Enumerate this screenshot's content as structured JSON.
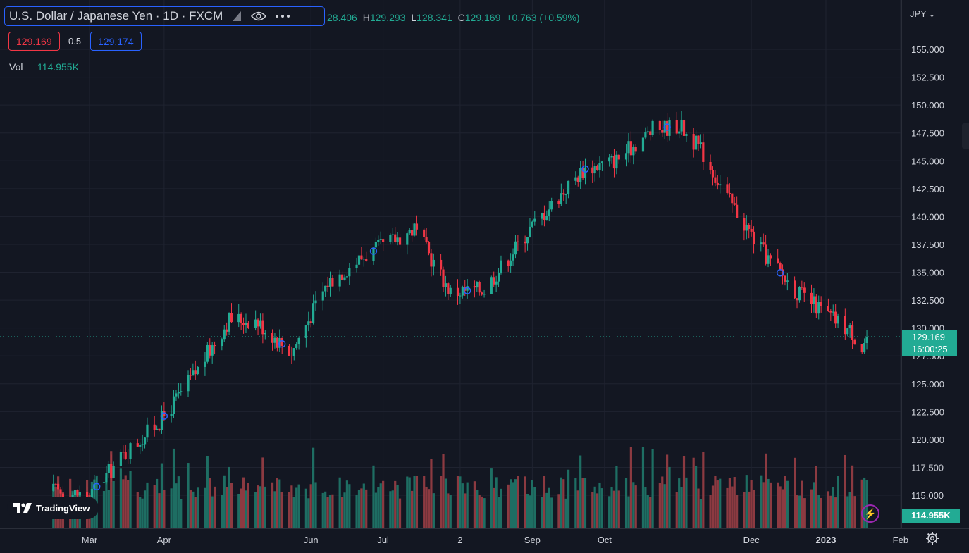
{
  "legend": {
    "symbol": "U.S. Dollar / Japanese Yen · 1D · FXCM",
    "ohlc_prefix": "28.406",
    "h_label": "H",
    "h_value": "129.293",
    "l_label": "L",
    "l_value": "128.341",
    "c_label": "C",
    "c_value": "129.169",
    "change": "+0.763 (+0.59%)",
    "sell_price": "129.169",
    "spread": "0.5",
    "buy_price": "129.174",
    "vol_label": "Vol",
    "vol_value": "114.955K"
  },
  "axis": {
    "currency": "JPY",
    "last_price": "129.169",
    "countdown": "16:00:25",
    "vol_tag": "114.955K"
  },
  "branding": {
    "logo_text": "TradingView"
  },
  "colors": {
    "up": "#22ab94",
    "down": "#f23645",
    "background": "#131722",
    "grid": "#1f2330",
    "marker": "#2962ff"
  },
  "icons": [
    "eye-icon",
    "more-icon",
    "flag-icon",
    "bolt-icon",
    "gear-icon",
    "tradingview-logo-icon"
  ],
  "chart_data": {
    "type": "candlestick",
    "title": "U.S. Dollar / Japanese Yen · 1D · FXCM",
    "y_unit": "JPY",
    "ylim": [
      112.5,
      157.5
    ],
    "y_ticks": [
      115.0,
      117.5,
      120.0,
      122.5,
      125.0,
      127.5,
      130.0,
      132.5,
      135.0,
      137.5,
      140.0,
      142.5,
      145.0,
      147.5,
      150.0,
      152.5,
      155.0
    ],
    "x_ticks": [
      "Mar",
      "Apr",
      "Jun",
      "Jul",
      "2",
      "Sep",
      "Oct",
      "Dec",
      "2023",
      "Feb"
    ],
    "grid": true,
    "last_price": 129.169,
    "volume_last": "114.955K",
    "series": [
      {
        "name": "close",
        "x": [
          "2022-02-14",
          "2022-03-01",
          "2022-03-15",
          "2022-03-31",
          "2022-04-15",
          "2022-04-28",
          "2022-05-09",
          "2022-05-24",
          "2022-06-08",
          "2022-06-22",
          "2022-07-14",
          "2022-07-29",
          "2022-08-12",
          "2022-08-31",
          "2022-09-22",
          "2022-10-06",
          "2022-10-21",
          "2022-11-01",
          "2022-11-10",
          "2022-11-21",
          "2022-12-06",
          "2022-12-20",
          "2023-01-03",
          "2023-01-12",
          "2023-01-16",
          "2023-01-18"
        ],
        "values": [
          115.4,
          115.0,
          118.6,
          121.8,
          126.3,
          130.8,
          130.7,
          127.8,
          134.1,
          136.3,
          138.9,
          133.2,
          133.5,
          138.9,
          144.2,
          145.1,
          147.8,
          148.2,
          146.0,
          141.7,
          136.7,
          133.2,
          131.0,
          129.6,
          128.2,
          129.169
        ]
      }
    ]
  }
}
